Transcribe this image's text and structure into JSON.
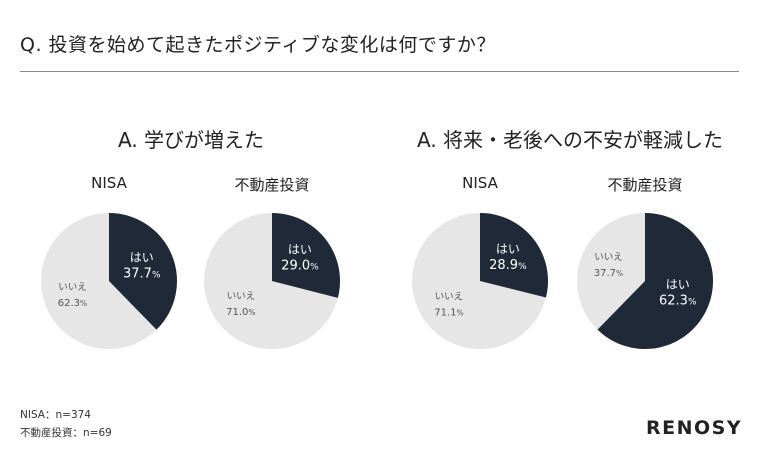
{
  "question": "Q. 投資を始めて起きたポジティブな変化は何ですか？",
  "colors": {
    "yes": "#1f2937",
    "no": "#e6e6e6",
    "yes_text": "#ffffff",
    "no_text": "#555555"
  },
  "chart_data": [
    {
      "type": "pie",
      "answer": "A. 学びが増えた",
      "label": "NISA",
      "slices": [
        {
          "name": "はい",
          "value": 37.7,
          "value_label": "37.7"
        },
        {
          "name": "いいえ",
          "value": 62.3,
          "value_label": "62.3"
        }
      ]
    },
    {
      "type": "pie",
      "label": "不動産投資",
      "slices": [
        {
          "name": "はい",
          "value": 29.0,
          "value_label": "29.0"
        },
        {
          "name": "いいえ",
          "value": 71.0,
          "value_label": "71.0"
        }
      ]
    },
    {
      "type": "pie",
      "answer": "A. 将来・老後への不安が軽減した",
      "label": "NISA",
      "slices": [
        {
          "name": "はい",
          "value": 28.9,
          "value_label": "28.9"
        },
        {
          "name": "いいえ",
          "value": 71.1,
          "value_label": "71.1"
        }
      ]
    },
    {
      "type": "pie",
      "label": "不動産投資",
      "slices": [
        {
          "name": "はい",
          "value": 62.3,
          "value_label": "62.3"
        },
        {
          "name": "いいえ",
          "value": 37.7,
          "value_label": "37.7"
        }
      ]
    }
  ],
  "unit": "%",
  "notes": [
    "NISA：n=374",
    "不動産投資：n=69"
  ],
  "brand": "RENOSY"
}
